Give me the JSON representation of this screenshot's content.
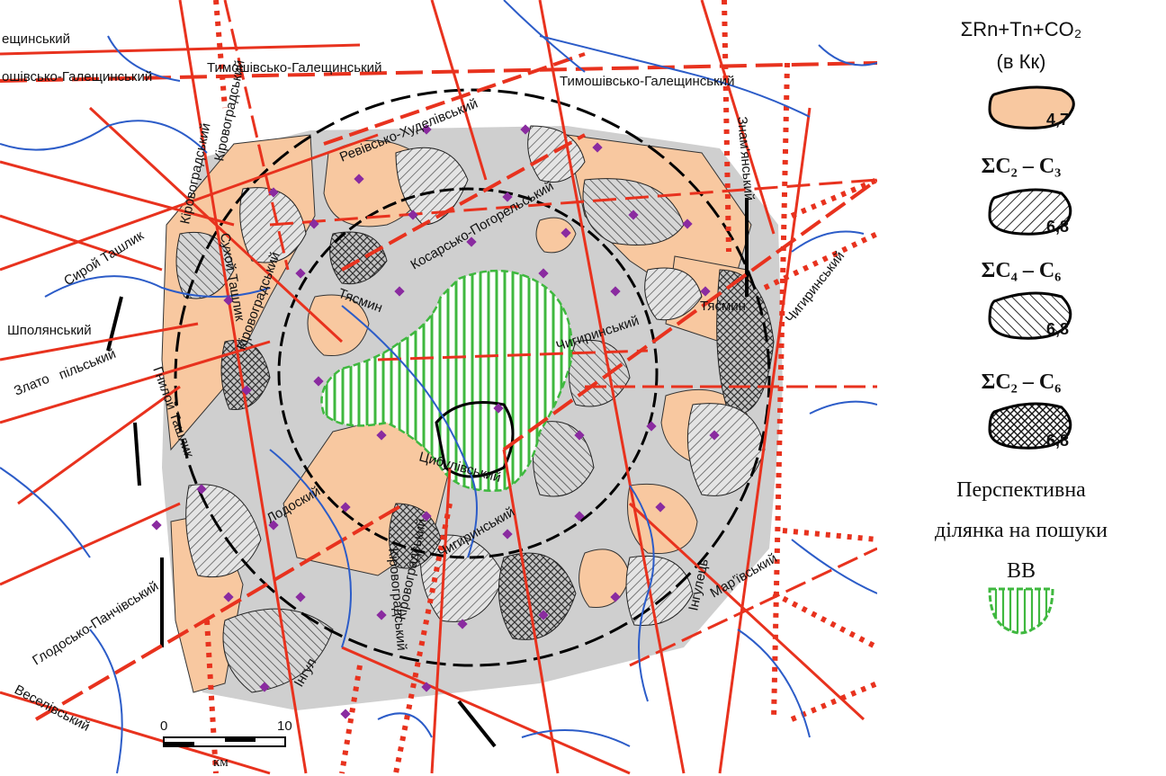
{
  "map": {
    "colors": {
      "fault_red": "#e8321e",
      "river_blue": "#2c5cc8",
      "anomaly_orange": "#f8c8a0",
      "hatch_grey": "#9a9a9a",
      "perspective_green": "#3fb83f",
      "borehole_purple": "#8a2ba0",
      "ring_black": "#000000"
    },
    "fault_labels": {
      "f1": "ещинський",
      "f2": "ошівсько-Галещинський",
      "f3": "Тимошівсько-Галещинський",
      "f4": "Тимошівсько-Галещинський",
      "f5": "Кіровоградський",
      "f6": "Кіровоградський",
      "f7": "Ревівсько-Худелівський",
      "f8": "Косарсько-Погорельський",
      "f9": "Знам'янський",
      "f10": "Сирой Ташлик",
      "f11": "Сухой Ташлик",
      "f12": "Кіровоградський",
      "f13": "Тясмин",
      "f14": "Тясмин",
      "f15": "Шполянський",
      "f16": "Злато",
      "f17": "пільський",
      "f18": "Гнилой Ташлик",
      "f19": "Чигиринський",
      "f20": "Чигиринський",
      "f21": "Цибулівський",
      "f22": "Лодоский",
      "f23": "Чигиринський",
      "f24": "Кіровоградський",
      "f25": "Кіровоградський",
      "f26": "Інгулець",
      "f27": "Мар'ївський",
      "f28": "Глодосько-Панчівський",
      "f29": "Веселівський",
      "f30": "Інгул"
    },
    "scale_bar": {
      "start": "0",
      "end": "10",
      "unit": "км"
    }
  },
  "legend": {
    "title_line1": "ΣRn+Tn+CO₂",
    "title_line2": "(в Кк)",
    "item1_value": "4,7",
    "sym2": "ΣC₂ – C₃",
    "item2_value": "6,8",
    "sym3": "ΣC₄ – C₆",
    "item3_value": "6,8",
    "sym4": "ΣC₂ – C₆",
    "item4_value": "6,8",
    "persp_line1": "Перспективна",
    "persp_line2": "ділянка на пошуки",
    "persp_line3": "ВВ"
  }
}
